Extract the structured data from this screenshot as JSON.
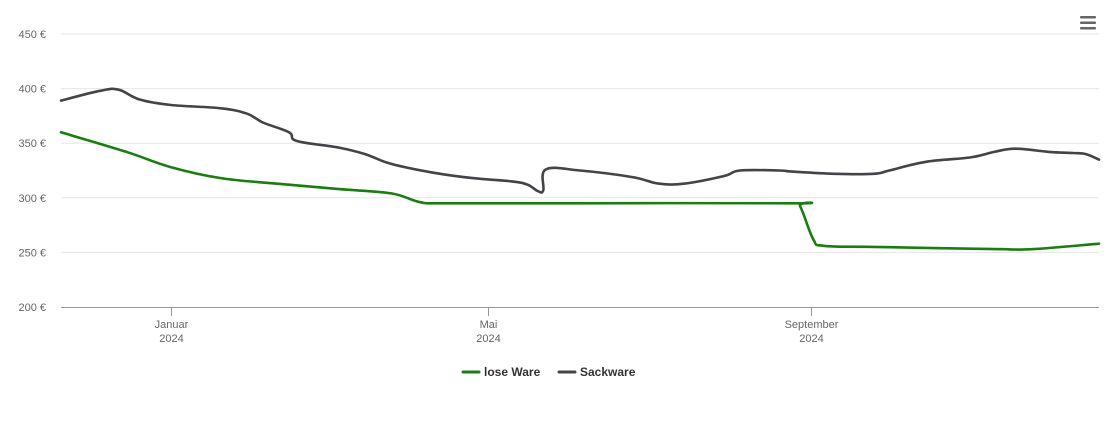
{
  "chart_data": {
    "type": "line",
    "y_ticks": [
      "200 €",
      "250 €",
      "300 €",
      "350 €",
      "400 €",
      "450 €"
    ],
    "ylim": [
      200,
      450
    ],
    "x_ticks": [
      {
        "label": "Januar",
        "sub": "2024",
        "date": "2024-01-01"
      },
      {
        "label": "Mai",
        "sub": "2024",
        "date": "2024-05-01"
      },
      {
        "label": "September",
        "sub": "2024",
        "date": "2024-09-01"
      }
    ],
    "xlim": [
      "2023-11-20",
      "2024-12-20"
    ],
    "grid": true,
    "legend": "bottom-center",
    "menu_icon": "hamburger-menu-icon",
    "series": [
      {
        "name": "lose Ware",
        "color": "#1a7d10",
        "points": [
          [
            "2023-11-20",
            360
          ],
          [
            "2023-12-15",
            342
          ],
          [
            "2024-01-01",
            328
          ],
          [
            "2024-01-20",
            318
          ],
          [
            "2024-02-10",
            313
          ],
          [
            "2024-03-05",
            308
          ],
          [
            "2024-03-25",
            304
          ],
          [
            "2024-04-05",
            296
          ],
          [
            "2024-04-15",
            295
          ],
          [
            "2024-06-01",
            295
          ],
          [
            "2024-08-25",
            295
          ],
          [
            "2024-08-28",
            292
          ],
          [
            "2024-09-02",
            262
          ],
          [
            "2024-09-06",
            256
          ],
          [
            "2024-09-25",
            255
          ],
          [
            "2024-11-10",
            253
          ],
          [
            "2024-11-25",
            253
          ],
          [
            "2024-12-20",
            258
          ]
        ]
      },
      {
        "name": "Sackware",
        "color": "#434348",
        "points": [
          [
            "2023-11-20",
            389
          ],
          [
            "2023-12-05",
            398
          ],
          [
            "2023-12-12",
            399
          ],
          [
            "2023-12-20",
            390
          ],
          [
            "2024-01-01",
            385
          ],
          [
            "2024-01-20",
            382
          ],
          [
            "2024-01-30",
            377
          ],
          [
            "2024-02-05",
            369
          ],
          [
            "2024-02-15",
            360
          ],
          [
            "2024-02-18",
            352
          ],
          [
            "2024-03-05",
            346
          ],
          [
            "2024-03-15",
            340
          ],
          [
            "2024-03-25",
            331
          ],
          [
            "2024-04-10",
            323
          ],
          [
            "2024-04-25",
            318
          ],
          [
            "2024-05-10",
            315
          ],
          [
            "2024-05-16",
            312
          ],
          [
            "2024-05-20",
            306
          ],
          [
            "2024-05-22",
            307
          ],
          [
            "2024-05-23",
            326
          ],
          [
            "2024-06-05",
            325
          ],
          [
            "2024-06-25",
            319
          ],
          [
            "2024-07-05",
            313
          ],
          [
            "2024-07-15",
            313
          ],
          [
            "2024-07-30",
            320
          ],
          [
            "2024-08-05",
            325
          ],
          [
            "2024-08-20",
            325
          ],
          [
            "2024-08-25",
            324
          ],
          [
            "2024-09-10",
            322
          ],
          [
            "2024-09-25",
            322
          ],
          [
            "2024-10-01",
            325
          ],
          [
            "2024-10-15",
            333
          ],
          [
            "2024-11-01",
            337
          ],
          [
            "2024-11-10",
            342
          ],
          [
            "2024-11-18",
            345
          ],
          [
            "2024-12-01",
            342
          ],
          [
            "2024-12-10",
            341
          ],
          [
            "2024-12-15",
            340
          ],
          [
            "2024-12-20",
            335
          ]
        ]
      }
    ]
  }
}
